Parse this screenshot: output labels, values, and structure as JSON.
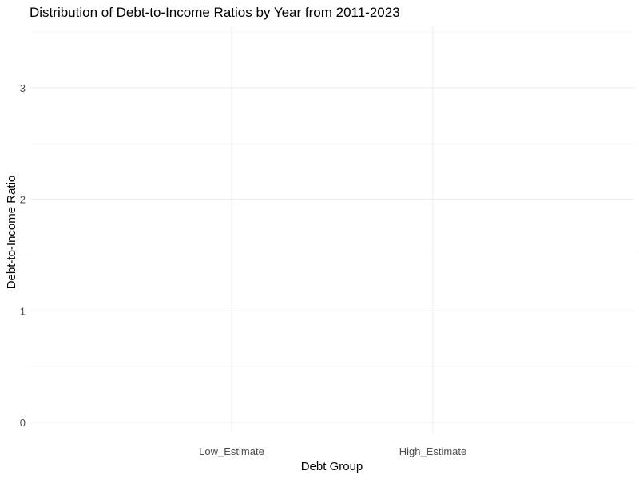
{
  "chart_data": {
    "type": "box",
    "title": "Distribution of Debt-to-Income Ratios by Year from 2011-2023",
    "xlabel": "Debt Group",
    "ylabel": "Debt-to-Income Ratio",
    "categories": [
      "Low_Estimate",
      "High_Estimate"
    ],
    "y_ticks": [
      0,
      1,
      2,
      3
    ],
    "ylim": [
      -0.1,
      3.55
    ],
    "series": [],
    "grid": true,
    "legend": "none",
    "colors": {
      "background": "#ffffff",
      "grid_major": "#ebebeb",
      "grid_minor": "#f5f5f5",
      "tick_text": "#4d4d4d",
      "axis_title": "#000000"
    }
  }
}
